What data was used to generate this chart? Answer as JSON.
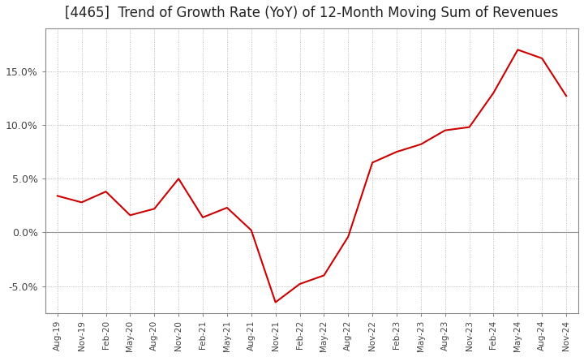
{
  "title": "[4465]  Trend of Growth Rate (YoY) of 12-Month Moving Sum of Revenues",
  "title_fontsize": 12,
  "line_color": "#cc0000",
  "background_color": "#ffffff",
  "plot_bg_color": "#ffffff",
  "ylim": [
    -0.075,
    0.19
  ],
  "yticks": [
    -0.05,
    0.0,
    0.05,
    0.1,
    0.15
  ],
  "x_labels": [
    "Aug-19",
    "Nov-19",
    "Feb-20",
    "May-20",
    "Aug-20",
    "Nov-20",
    "Feb-21",
    "May-21",
    "Aug-21",
    "Nov-21",
    "Feb-22",
    "May-22",
    "Aug-22",
    "Nov-22",
    "Feb-23",
    "May-23",
    "Aug-23",
    "Nov-23",
    "Feb-24",
    "May-24",
    "Aug-24",
    "Nov-24"
  ],
  "y_values": [
    0.034,
    0.028,
    0.038,
    0.016,
    0.022,
    0.05,
    0.014,
    0.023,
    0.002,
    -0.065,
    -0.048,
    -0.04,
    -0.004,
    0.065,
    0.075,
    0.082,
    0.095,
    0.098,
    0.13,
    0.17,
    0.162,
    0.127
  ]
}
